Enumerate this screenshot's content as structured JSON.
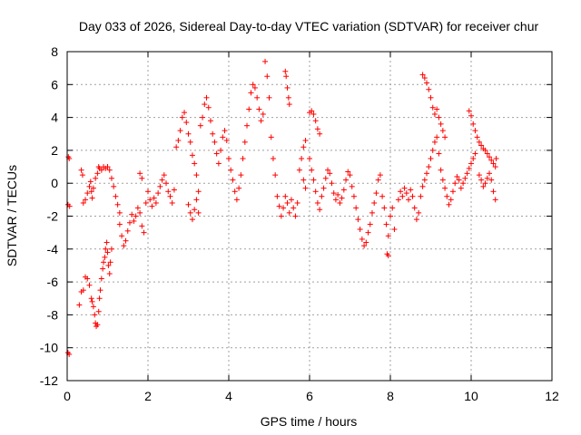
{
  "chart_data": {
    "type": "scatter",
    "title": "Day 033 of 2026, Sidereal Day-to-day VTEC variation (SDTVAR) for receiver chur",
    "xlabel": "GPS time / hours",
    "ylabel": "SDTVAR / TECUs",
    "xlim": [
      0,
      12
    ],
    "ylim": [
      -12,
      8
    ],
    "xticks": [
      0,
      2,
      4,
      6,
      8,
      10,
      12
    ],
    "yticks": [
      -12,
      -10,
      -8,
      -6,
      -4,
      -2,
      0,
      2,
      4,
      6,
      8
    ],
    "grid": true,
    "marker": "plus",
    "color": "#ff0000",
    "series": [
      {
        "name": "SDTVAR",
        "points": [
          [
            0.02,
            -10.3
          ],
          [
            0.05,
            -10.4
          ],
          [
            0.03,
            1.6
          ],
          [
            0.05,
            1.5
          ],
          [
            0.02,
            -1.3
          ],
          [
            0.06,
            -1.4
          ],
          [
            0.3,
            -7.4
          ],
          [
            0.35,
            -6.6
          ],
          [
            0.4,
            -6.5
          ],
          [
            0.45,
            -5.7
          ],
          [
            0.5,
            -5.8
          ],
          [
            0.55,
            -6.2
          ],
          [
            0.6,
            -7.0
          ],
          [
            0.62,
            -7.2
          ],
          [
            0.65,
            -7.5
          ],
          [
            0.68,
            -8.0
          ],
          [
            0.7,
            -8.5
          ],
          [
            0.72,
            -8.7
          ],
          [
            0.75,
            -8.6
          ],
          [
            0.78,
            -7.8
          ],
          [
            0.8,
            -7.0
          ],
          [
            0.82,
            -6.5
          ],
          [
            0.85,
            -5.8
          ],
          [
            0.88,
            -5.2
          ],
          [
            0.9,
            -4.8
          ],
          [
            0.93,
            -4.5
          ],
          [
            0.95,
            -4.0
          ],
          [
            0.98,
            -3.6
          ],
          [
            1.0,
            -4.2
          ],
          [
            1.02,
            -5.0
          ],
          [
            1.05,
            -5.5
          ],
          [
            1.07,
            -4.8
          ],
          [
            1.1,
            -4.0
          ],
          [
            0.35,
            0.8
          ],
          [
            0.38,
            0.5
          ],
          [
            0.4,
            -1.2
          ],
          [
            0.45,
            -1.0
          ],
          [
            0.5,
            -0.6
          ],
          [
            0.55,
            -0.2
          ],
          [
            0.58,
            0.1
          ],
          [
            0.6,
            -0.5
          ],
          [
            0.62,
            -0.9
          ],
          [
            0.65,
            -0.3
          ],
          [
            0.7,
            0.3
          ],
          [
            0.75,
            0.6
          ],
          [
            0.78,
            1.0
          ],
          [
            0.8,
            0.9
          ],
          [
            0.85,
            0.8
          ],
          [
            0.9,
            1.0
          ],
          [
            0.95,
            0.9
          ],
          [
            1.0,
            1.0
          ],
          [
            1.05,
            0.8
          ],
          [
            1.1,
            0.3
          ],
          [
            1.15,
            -0.2
          ],
          [
            1.2,
            -0.8
          ],
          [
            1.25,
            -1.3
          ],
          [
            1.3,
            -1.8
          ],
          [
            1.3,
            -2.5
          ],
          [
            1.35,
            -3.2
          ],
          [
            1.4,
            -3.8
          ],
          [
            1.45,
            -3.5
          ],
          [
            1.5,
            -2.9
          ],
          [
            1.55,
            -2.4
          ],
          [
            1.6,
            -1.9
          ],
          [
            1.65,
            -2.3
          ],
          [
            1.7,
            -2.0
          ],
          [
            1.75,
            -1.5
          ],
          [
            1.8,
            -1.8
          ],
          [
            1.85,
            -2.6
          ],
          [
            1.9,
            -3.0
          ],
          [
            1.95,
            -1.2
          ],
          [
            2.0,
            -0.5
          ],
          [
            1.8,
            0.6
          ],
          [
            1.85,
            0.3
          ],
          [
            2.05,
            -1.0
          ],
          [
            2.1,
            -1.4
          ],
          [
            2.15,
            -0.9
          ],
          [
            2.2,
            -1.2
          ],
          [
            2.25,
            -0.6
          ],
          [
            2.3,
            -0.2
          ],
          [
            2.35,
            0.2
          ],
          [
            2.4,
            0.5
          ],
          [
            2.45,
            0.0
          ],
          [
            2.5,
            -0.5
          ],
          [
            2.55,
            -0.8
          ],
          [
            2.6,
            -1.2
          ],
          [
            2.65,
            -0.4
          ],
          [
            2.7,
            2.2
          ],
          [
            2.75,
            2.6
          ],
          [
            2.8,
            3.2
          ],
          [
            2.85,
            4.0
          ],
          [
            2.9,
            4.3
          ],
          [
            2.95,
            3.7
          ],
          [
            3.0,
            3.0
          ],
          [
            3.05,
            2.5
          ],
          [
            3.1,
            1.7
          ],
          [
            3.15,
            1.2
          ],
          [
            3.2,
            0.5
          ],
          [
            3.25,
            -0.5
          ],
          [
            3.0,
            -1.3
          ],
          [
            3.05,
            -1.8
          ],
          [
            3.1,
            -2.2
          ],
          [
            3.15,
            -1.6
          ],
          [
            3.2,
            -1.0
          ],
          [
            3.25,
            -1.8
          ],
          [
            3.3,
            3.5
          ],
          [
            3.35,
            4.0
          ],
          [
            3.4,
            4.8
          ],
          [
            3.45,
            5.2
          ],
          [
            3.5,
            4.6
          ],
          [
            3.55,
            3.8
          ],
          [
            3.6,
            3.0
          ],
          [
            3.65,
            2.5
          ],
          [
            3.7,
            1.8
          ],
          [
            3.75,
            1.2
          ],
          [
            3.8,
            2.0
          ],
          [
            3.85,
            2.8
          ],
          [
            3.9,
            3.2
          ],
          [
            3.95,
            2.6
          ],
          [
            4.0,
            1.5
          ],
          [
            4.05,
            0.8
          ],
          [
            4.1,
            0.2
          ],
          [
            4.15,
            -0.5
          ],
          [
            4.2,
            -1.0
          ],
          [
            4.25,
            -0.3
          ],
          [
            4.3,
            0.5
          ],
          [
            4.35,
            1.5
          ],
          [
            4.4,
            2.5
          ],
          [
            4.45,
            3.5
          ],
          [
            4.5,
            4.5
          ],
          [
            4.55,
            5.5
          ],
          [
            4.6,
            6.0
          ],
          [
            4.65,
            5.8
          ],
          [
            4.7,
            5.2
          ],
          [
            4.75,
            4.5
          ],
          [
            4.8,
            3.8
          ],
          [
            4.85,
            4.2
          ],
          [
            4.9,
            7.4
          ],
          [
            4.95,
            6.5
          ],
          [
            5.0,
            5.2
          ],
          [
            5.05,
            2.8
          ],
          [
            5.1,
            1.5
          ],
          [
            5.15,
            0.5
          ],
          [
            5.2,
            -0.8
          ],
          [
            5.25,
            -1.4
          ],
          [
            5.3,
            -2.0
          ],
          [
            5.35,
            -1.5
          ],
          [
            5.4,
            -0.8
          ],
          [
            5.45,
            -1.2
          ],
          [
            5.5,
            -1.8
          ],
          [
            5.55,
            -1.0
          ],
          [
            5.4,
            6.8
          ],
          [
            5.42,
            6.5
          ],
          [
            5.45,
            5.8
          ],
          [
            5.48,
            5.2
          ],
          [
            5.5,
            4.8
          ],
          [
            5.6,
            -1.5
          ],
          [
            5.65,
            -2.0
          ],
          [
            5.7,
            -1.2
          ],
          [
            5.75,
            0.8
          ],
          [
            5.8,
            1.5
          ],
          [
            5.85,
            2.2
          ],
          [
            5.9,
            2.6
          ],
          [
            5.85,
            0.2
          ],
          [
            5.9,
            -0.3
          ],
          [
            6.0,
            4.3
          ],
          [
            6.05,
            4.4
          ],
          [
            6.1,
            4.2
          ],
          [
            6.15,
            3.8
          ],
          [
            6.2,
            3.3
          ],
          [
            6.25,
            3.0
          ],
          [
            6.0,
            1.5
          ],
          [
            6.05,
            0.8
          ],
          [
            6.1,
            0.2
          ],
          [
            6.15,
            -0.5
          ],
          [
            6.2,
            -1.2
          ],
          [
            6.25,
            -1.6
          ],
          [
            6.3,
            -0.8
          ],
          [
            6.35,
            -0.3
          ],
          [
            6.4,
            0.3
          ],
          [
            6.45,
            0.8
          ],
          [
            6.5,
            0.6
          ],
          [
            6.55,
            0.0
          ],
          [
            6.6,
            -0.6
          ],
          [
            6.65,
            -1.0
          ],
          [
            6.7,
            -0.7
          ],
          [
            6.75,
            -1.2
          ],
          [
            6.8,
            -0.9
          ],
          [
            6.85,
            -0.4
          ],
          [
            6.9,
            0.2
          ],
          [
            6.95,
            0.7
          ],
          [
            7.0,
            0.5
          ],
          [
            7.05,
            -0.2
          ],
          [
            7.1,
            -0.8
          ],
          [
            7.15,
            -1.5
          ],
          [
            7.2,
            -2.2
          ],
          [
            7.25,
            -2.8
          ],
          [
            7.3,
            -3.4
          ],
          [
            7.35,
            -3.8
          ],
          [
            7.4,
            -3.6
          ],
          [
            7.45,
            -3.0
          ],
          [
            7.5,
            -2.5
          ],
          [
            7.55,
            -1.8
          ],
          [
            7.6,
            -1.2
          ],
          [
            7.65,
            -0.6
          ],
          [
            7.7,
            0.2
          ],
          [
            7.75,
            0.5
          ],
          [
            7.8,
            -0.8
          ],
          [
            7.85,
            -1.5
          ],
          [
            7.9,
            -2.5
          ],
          [
            7.95,
            -3.2
          ],
          [
            7.92,
            -4.3
          ],
          [
            7.95,
            -4.4
          ],
          [
            8.0,
            -2.0
          ],
          [
            8.05,
            -1.5
          ],
          [
            8.1,
            -2.8
          ],
          [
            8.2,
            -1.0
          ],
          [
            8.25,
            -0.5
          ],
          [
            8.3,
            -0.8
          ],
          [
            8.35,
            -0.3
          ],
          [
            8.4,
            -0.6
          ],
          [
            8.45,
            -1.0
          ],
          [
            8.5,
            -0.4
          ],
          [
            8.55,
            -0.8
          ],
          [
            8.6,
            -1.5
          ],
          [
            8.65,
            -2.2
          ],
          [
            8.7,
            -1.8
          ],
          [
            8.75,
            -0.8
          ],
          [
            8.8,
            -0.2
          ],
          [
            8.85,
            0.2
          ],
          [
            8.9,
            0.6
          ],
          [
            8.95,
            1.0
          ],
          [
            9.0,
            1.5
          ],
          [
            9.05,
            2.0
          ],
          [
            9.1,
            2.5
          ],
          [
            9.15,
            2.8
          ],
          [
            9.2,
            1.8
          ],
          [
            8.8,
            6.6
          ],
          [
            8.85,
            6.4
          ],
          [
            8.9,
            6.1
          ],
          [
            8.95,
            5.7
          ],
          [
            9.0,
            5.2
          ],
          [
            9.05,
            4.6
          ],
          [
            9.1,
            4.2
          ],
          [
            9.15,
            4.5
          ],
          [
            9.2,
            4.0
          ],
          [
            9.25,
            3.6
          ],
          [
            9.3,
            3.2
          ],
          [
            9.35,
            2.8
          ],
          [
            9.25,
            0.8
          ],
          [
            9.3,
            0.2
          ],
          [
            9.35,
            -0.3
          ],
          [
            9.4,
            -0.8
          ],
          [
            9.45,
            -1.3
          ],
          [
            9.5,
            -1.0
          ],
          [
            9.55,
            -0.5
          ],
          [
            9.6,
            0.0
          ],
          [
            9.65,
            0.4
          ],
          [
            9.7,
            0.2
          ],
          [
            9.75,
            -0.3
          ],
          [
            9.8,
            0.0
          ],
          [
            9.85,
            0.3
          ],
          [
            9.9,
            0.6
          ],
          [
            9.95,
            0.9
          ],
          [
            10.0,
            1.2
          ],
          [
            10.05,
            1.5
          ],
          [
            10.1,
            1.8
          ],
          [
            9.95,
            4.4
          ],
          [
            10.0,
            4.1
          ],
          [
            10.05,
            3.6
          ],
          [
            10.1,
            3.2
          ],
          [
            10.15,
            2.8
          ],
          [
            10.2,
            2.5
          ],
          [
            10.25,
            2.3
          ],
          [
            10.3,
            2.1
          ],
          [
            10.35,
            2.0
          ],
          [
            10.4,
            1.8
          ],
          [
            10.45,
            1.6
          ],
          [
            10.5,
            1.4
          ],
          [
            10.55,
            1.2
          ],
          [
            10.6,
            1.0
          ],
          [
            10.2,
            0.5
          ],
          [
            10.25,
            0.2
          ],
          [
            10.3,
            -0.2
          ],
          [
            10.35,
            0.0
          ],
          [
            10.4,
            0.3
          ],
          [
            10.45,
            0.6
          ],
          [
            10.5,
            0.2
          ],
          [
            10.55,
            -0.5
          ],
          [
            10.6,
            -1.0
          ],
          [
            10.62,
            1.5
          ]
        ]
      }
    ]
  }
}
